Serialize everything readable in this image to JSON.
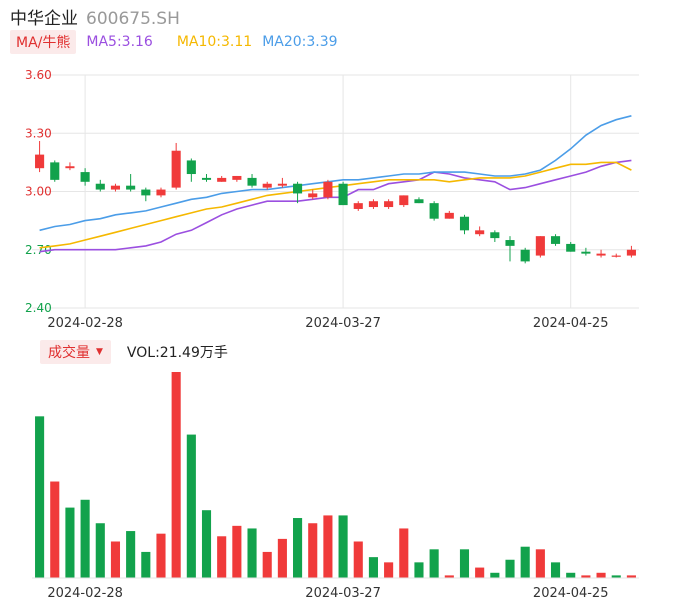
{
  "header": {
    "name": "中华企业",
    "code": "600675.SH"
  },
  "ma": {
    "selector": "MA/牛熊",
    "items": [
      {
        "label": "MA5:3.16",
        "color": "#9b4fe0"
      },
      {
        "label": "MA10:3.11",
        "color": "#f5b800"
      },
      {
        "label": "MA20:3.39",
        "color": "#4b9de8"
      }
    ]
  },
  "volume": {
    "selector": "成交量",
    "label": "VOL:21.49万手"
  },
  "colors": {
    "up": "#f03a3a",
    "down": "#12a24c",
    "grid": "#e6e6e6"
  },
  "chart_data": [
    {
      "type": "candlestick",
      "ylim": [
        2.4,
        3.6
      ],
      "y_ticks": [
        "3.60",
        "3.30",
        "3.00",
        "2.70",
        "2.40"
      ],
      "x_tick_labels": [
        {
          "index": 3,
          "label": "2024-02-28"
        },
        {
          "index": 20,
          "label": "2024-03-27"
        },
        {
          "index": 35,
          "label": "2024-04-25"
        }
      ],
      "candles": [
        {
          "o": 3.12,
          "c": 3.19,
          "h": 3.26,
          "l": 3.1
        },
        {
          "o": 3.15,
          "c": 3.06,
          "h": 3.16,
          "l": 3.05
        },
        {
          "o": 3.12,
          "c": 3.13,
          "h": 3.15,
          "l": 3.11
        },
        {
          "o": 3.1,
          "c": 3.05,
          "h": 3.12,
          "l": 3.03
        },
        {
          "o": 3.04,
          "c": 3.01,
          "h": 3.06,
          "l": 3.0
        },
        {
          "o": 3.01,
          "c": 3.03,
          "h": 3.04,
          "l": 3.0
        },
        {
          "o": 3.03,
          "c": 3.01,
          "h": 3.09,
          "l": 3.0
        },
        {
          "o": 3.01,
          "c": 2.98,
          "h": 3.02,
          "l": 2.95
        },
        {
          "o": 2.98,
          "c": 3.01,
          "h": 3.02,
          "l": 2.97
        },
        {
          "o": 3.02,
          "c": 3.21,
          "h": 3.25,
          "l": 3.01
        },
        {
          "o": 3.16,
          "c": 3.09,
          "h": 3.17,
          "l": 3.05
        },
        {
          "o": 3.07,
          "c": 3.06,
          "h": 3.09,
          "l": 3.05
        },
        {
          "o": 3.05,
          "c": 3.07,
          "h": 3.08,
          "l": 3.05
        },
        {
          "o": 3.06,
          "c": 3.08,
          "h": 3.08,
          "l": 3.05
        },
        {
          "o": 3.07,
          "c": 3.03,
          "h": 3.09,
          "l": 3.02
        },
        {
          "o": 3.02,
          "c": 3.04,
          "h": 3.05,
          "l": 3.01
        },
        {
          "o": 3.03,
          "c": 3.04,
          "h": 3.07,
          "l": 3.02
        },
        {
          "o": 3.04,
          "c": 2.99,
          "h": 3.05,
          "l": 2.94
        },
        {
          "o": 2.97,
          "c": 2.99,
          "h": 3.01,
          "l": 2.96
        },
        {
          "o": 2.97,
          "c": 3.05,
          "h": 3.06,
          "l": 2.96
        },
        {
          "o": 3.04,
          "c": 2.93,
          "h": 3.05,
          "l": 2.93
        },
        {
          "o": 2.91,
          "c": 2.94,
          "h": 2.95,
          "l": 2.9
        },
        {
          "o": 2.92,
          "c": 2.95,
          "h": 2.96,
          "l": 2.91
        },
        {
          "o": 2.92,
          "c": 2.95,
          "h": 2.96,
          "l": 2.91
        },
        {
          "o": 2.93,
          "c": 2.98,
          "h": 2.98,
          "l": 2.92
        },
        {
          "o": 2.96,
          "c": 2.94,
          "h": 2.97,
          "l": 2.94
        },
        {
          "o": 2.94,
          "c": 2.86,
          "h": 2.95,
          "l": 2.85
        },
        {
          "o": 2.86,
          "c": 2.89,
          "h": 2.9,
          "l": 2.86
        },
        {
          "o": 2.87,
          "c": 2.8,
          "h": 2.88,
          "l": 2.78
        },
        {
          "o": 2.78,
          "c": 2.8,
          "h": 2.82,
          "l": 2.77
        },
        {
          "o": 2.79,
          "c": 2.76,
          "h": 2.8,
          "l": 2.74
        },
        {
          "o": 2.75,
          "c": 2.72,
          "h": 2.77,
          "l": 2.64
        },
        {
          "o": 2.7,
          "c": 2.64,
          "h": 2.71,
          "l": 2.63
        },
        {
          "o": 2.67,
          "c": 2.77,
          "h": 2.77,
          "l": 2.66
        },
        {
          "o": 2.77,
          "c": 2.73,
          "h": 2.78,
          "l": 2.72
        },
        {
          "o": 2.73,
          "c": 2.69,
          "h": 2.74,
          "l": 2.69
        },
        {
          "o": 2.69,
          "c": 2.68,
          "h": 2.71,
          "l": 2.67
        },
        {
          "o": 2.67,
          "c": 2.68,
          "h": 2.7,
          "l": 2.66
        },
        {
          "o": 2.67,
          "c": 2.67,
          "h": 2.68,
          "l": 2.66
        },
        {
          "o": 2.67,
          "c": 2.7,
          "h": 2.72,
          "l": 2.66
        }
      ],
      "ma_series": [
        {
          "label": "MA5",
          "color": "#9b4fe0",
          "values": [
            2.69,
            2.7,
            2.7,
            2.7,
            2.7,
            2.7,
            2.71,
            2.72,
            2.74,
            2.78,
            2.8,
            2.84,
            2.88,
            2.91,
            2.93,
            2.95,
            2.95,
            2.95,
            2.96,
            2.97,
            2.97,
            3.01,
            3.01,
            3.04,
            3.05,
            3.06,
            3.1,
            3.09,
            3.07,
            3.06,
            3.05,
            3.01,
            3.02,
            3.04,
            3.06,
            3.08,
            3.1,
            3.13,
            3.15,
            3.16
          ]
        },
        {
          "label": "MA10",
          "color": "#f5b800",
          "values": [
            2.71,
            2.72,
            2.73,
            2.75,
            2.77,
            2.79,
            2.81,
            2.83,
            2.85,
            2.87,
            2.89,
            2.91,
            2.92,
            2.94,
            2.96,
            2.98,
            2.99,
            3.0,
            3.01,
            3.02,
            3.03,
            3.04,
            3.05,
            3.06,
            3.06,
            3.06,
            3.06,
            3.05,
            3.06,
            3.07,
            3.07,
            3.07,
            3.08,
            3.1,
            3.12,
            3.14,
            3.14,
            3.15,
            3.15,
            3.11
          ]
        },
        {
          "label": "MA20",
          "color": "#4b9de8",
          "values": [
            2.8,
            2.82,
            2.83,
            2.85,
            2.86,
            2.88,
            2.89,
            2.9,
            2.92,
            2.94,
            2.96,
            2.97,
            2.99,
            3.0,
            3.01,
            3.01,
            3.02,
            3.03,
            3.04,
            3.05,
            3.06,
            3.06,
            3.07,
            3.08,
            3.09,
            3.09,
            3.1,
            3.1,
            3.1,
            3.09,
            3.08,
            3.08,
            3.09,
            3.11,
            3.16,
            3.22,
            3.29,
            3.34,
            3.37,
            3.39
          ]
        }
      ]
    },
    {
      "type": "bar",
      "title": "成交量",
      "values": [
        62,
        37,
        27,
        30,
        21,
        14,
        18,
        10,
        17,
        79,
        55,
        26,
        16,
        20,
        19,
        10,
        15,
        23,
        21,
        24,
        24,
        14,
        8,
        6,
        19,
        6,
        11,
        1,
        11,
        4,
        2,
        7,
        12,
        11,
        6,
        2,
        1,
        2,
        1,
        1
      ],
      "direction": [
        "down",
        "up",
        "down",
        "down",
        "down",
        "up",
        "down",
        "down",
        "up",
        "up",
        "down",
        "down",
        "up",
        "up",
        "down",
        "up",
        "up",
        "down",
        "up",
        "up",
        "down",
        "up",
        "down",
        "up",
        "up",
        "down",
        "down",
        "up",
        "down",
        "up",
        "down",
        "down",
        "down",
        "up",
        "down",
        "down",
        "up",
        "up",
        "down",
        "up"
      ]
    }
  ]
}
